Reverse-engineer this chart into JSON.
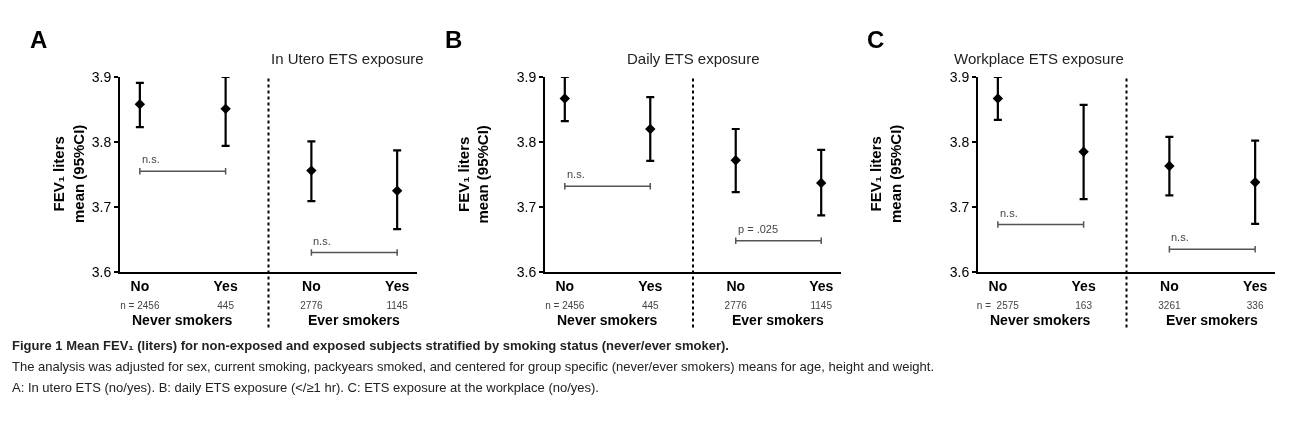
{
  "chart_data": [
    {
      "type": "scatter",
      "title": "In Utero ETS exposure",
      "ylabel": "FEV₁ liters\nmean (95%CI)",
      "categories": [
        "No\nn = 2456",
        "Yes\n445",
        "No\n2776",
        "Yes\n1145"
      ],
      "series": [
        {
          "color": "#000000",
          "values": [
            3.858,
            3.851,
            3.756,
            3.725
          ],
          "errors": [
            [
              3.823,
              3.891
            ],
            [
              3.794,
              3.9
            ],
            [
              3.709,
              3.801
            ],
            [
              3.666,
              3.787
            ]
          ]
        }
      ],
      "ylim": [
        3.6,
        3.9
      ],
      "yticks": [
        3.6,
        3.7,
        3.8,
        3.9
      ],
      "marker": "diamond",
      "annotations": [
        "A",
        "Never smokers",
        "Ever smokers",
        "n.s.",
        "n.s.",
        "Figure 1 Mean FEV₁ (liters) for non-exposed and exposed subjects stratified by smoking status (never/ever smoker).",
        "The analysis was adjusted for sex, current smoking, packyears smoked, and centered for group specific (never/ever smokers) means for age, height and weight.",
        "A: In utero ETS (no/yes). B: daily ETS exposure (</≥1 hr). C: ETS exposure at the workplace (no/yes)."
      ]
    },
    {
      "type": "scatter",
      "title": "Daily ETS exposure",
      "ylabel": "FEV₁ liters\nmean (95%CI)",
      "categories": [
        "No\nn = 2456",
        "Yes\n445",
        "No\n2776",
        "Yes\n1145"
      ],
      "series": [
        {
          "color": "#000000",
          "values": [
            3.867,
            3.82,
            3.772,
            3.737
          ],
          "errors": [
            [
              3.832,
              3.9
            ],
            [
              3.771,
              3.869
            ],
            [
              3.723,
              3.82
            ],
            [
              3.687,
              3.788
            ]
          ]
        }
      ],
      "ylim": [
        3.6,
        3.9
      ],
      "yticks": [
        3.6,
        3.7,
        3.8,
        3.9
      ],
      "marker": "diamond",
      "annotations": [
        "B",
        "Never smokers",
        "Ever smokers",
        "n.s.",
        "p = .025"
      ]
    },
    {
      "type": "scatter",
      "title": "Workplace ETS exposure",
      "ylabel": "FEV₁ liters\nmean (95%CI)",
      "categories": [
        "No\nn =  2575",
        "Yes\n163",
        "No\n3261",
        "Yes\n336"
      ],
      "series": [
        {
          "color": "#000000",
          "values": [
            3.867,
            3.785,
            3.763,
            3.738
          ],
          "errors": [
            [
              3.834,
              3.9
            ],
            [
              3.712,
              3.857
            ],
            [
              3.718,
              3.808
            ],
            [
              3.674,
              3.802
            ]
          ]
        }
      ],
      "ylim": [
        3.6,
        3.9
      ],
      "yticks": [
        3.6,
        3.7,
        3.8,
        3.9
      ],
      "marker": "diamond",
      "annotations": [
        "C",
        "Never smokers",
        "Ever smokers",
        "n.s.",
        "n.s."
      ]
    }
  ]
}
